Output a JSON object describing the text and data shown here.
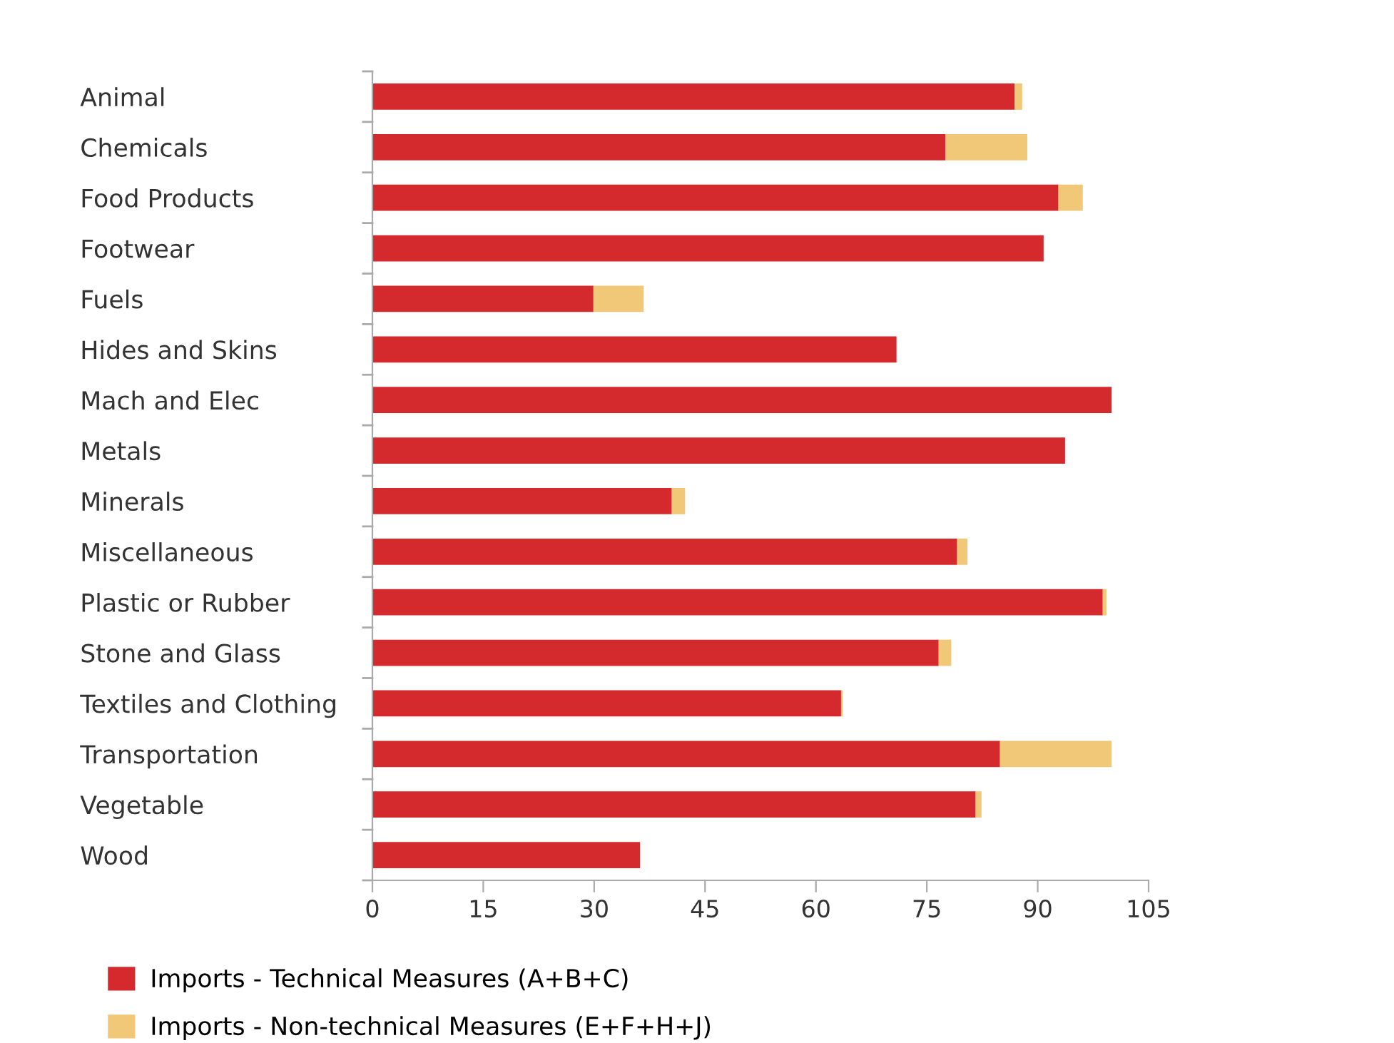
{
  "chart_data": {
    "type": "bar",
    "orientation": "horizontal",
    "stacked": true,
    "categories": [
      "Animal",
      "Chemicals",
      "Food Products",
      "Footwear",
      "Fuels",
      "Hides and Skins",
      "Mach and Elec",
      "Metals",
      "Minerals",
      "Miscellaneous",
      "Plastic or Rubber",
      "Stone and Glass",
      "Textiles and Clothing",
      "Transportation",
      "Vegetable",
      "Wood"
    ],
    "series": [
      {
        "name": "Imports - Technical Measures (A+B+C)",
        "color": "#d42a2e",
        "values": [
          86.9,
          77.5,
          92.8,
          90.8,
          29.9,
          70.9,
          100,
          93.7,
          40.5,
          79.1,
          98.8,
          76.6,
          63.4,
          84.9,
          81.6,
          36.2
        ]
      },
      {
        "name": "Imports - Non-technical Measures (E+F+H+J)",
        "color": "#f0c878",
        "values": [
          1.0,
          11.1,
          3.3,
          0,
          6.8,
          0,
          0,
          0,
          1.8,
          1.4,
          0.5,
          1.7,
          0.2,
          15.1,
          0.8,
          0
        ]
      }
    ],
    "xlim": [
      0,
      105
    ],
    "xticks": [
      0,
      15,
      30,
      45,
      60,
      75,
      90,
      105
    ],
    "grid": false,
    "legend": "bottom left"
  }
}
